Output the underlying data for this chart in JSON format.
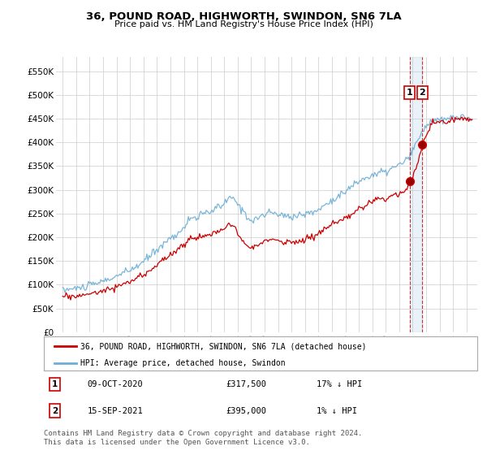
{
  "title": "36, POUND ROAD, HIGHWORTH, SWINDON, SN6 7LA",
  "subtitle": "Price paid vs. HM Land Registry's House Price Index (HPI)",
  "hpi_label": "HPI: Average price, detached house, Swindon",
  "property_label": "36, POUND ROAD, HIGHWORTH, SWINDON, SN6 7LA (detached house)",
  "footer": "Contains HM Land Registry data © Crown copyright and database right 2024.\nThis data is licensed under the Open Government Licence v3.0.",
  "transaction1_date": "09-OCT-2020",
  "transaction1_price": "£317,500",
  "transaction1_hpi": "17% ↓ HPI",
  "transaction2_date": "15-SEP-2021",
  "transaction2_price": "£395,000",
  "transaction2_hpi": "1% ↓ HPI",
  "hpi_color": "#6baed6",
  "property_color": "#cc0000",
  "background_color": "#ffffff",
  "grid_color": "#cccccc",
  "ylim_min": 0,
  "ylim_max": 580000,
  "yticks": [
    0,
    50000,
    100000,
    150000,
    200000,
    250000,
    300000,
    350000,
    400000,
    450000,
    500000,
    550000
  ],
  "ytick_labels": [
    "£0",
    "£50K",
    "£100K",
    "£150K",
    "£200K",
    "£250K",
    "£300K",
    "£350K",
    "£400K",
    "£450K",
    "£500K",
    "£550K"
  ],
  "xlim_min": 1994.5,
  "xlim_max": 2025.8,
  "xticks": [
    1995,
    1996,
    1997,
    1998,
    1999,
    2000,
    2001,
    2002,
    2003,
    2004,
    2005,
    2006,
    2007,
    2008,
    2009,
    2010,
    2011,
    2012,
    2013,
    2014,
    2015,
    2016,
    2017,
    2018,
    2019,
    2020,
    2021,
    2022,
    2023,
    2024,
    2025
  ],
  "transaction1_x": 2020.78,
  "transaction1_y": 317500,
  "transaction2_x": 2021.71,
  "transaction2_y": 395000
}
